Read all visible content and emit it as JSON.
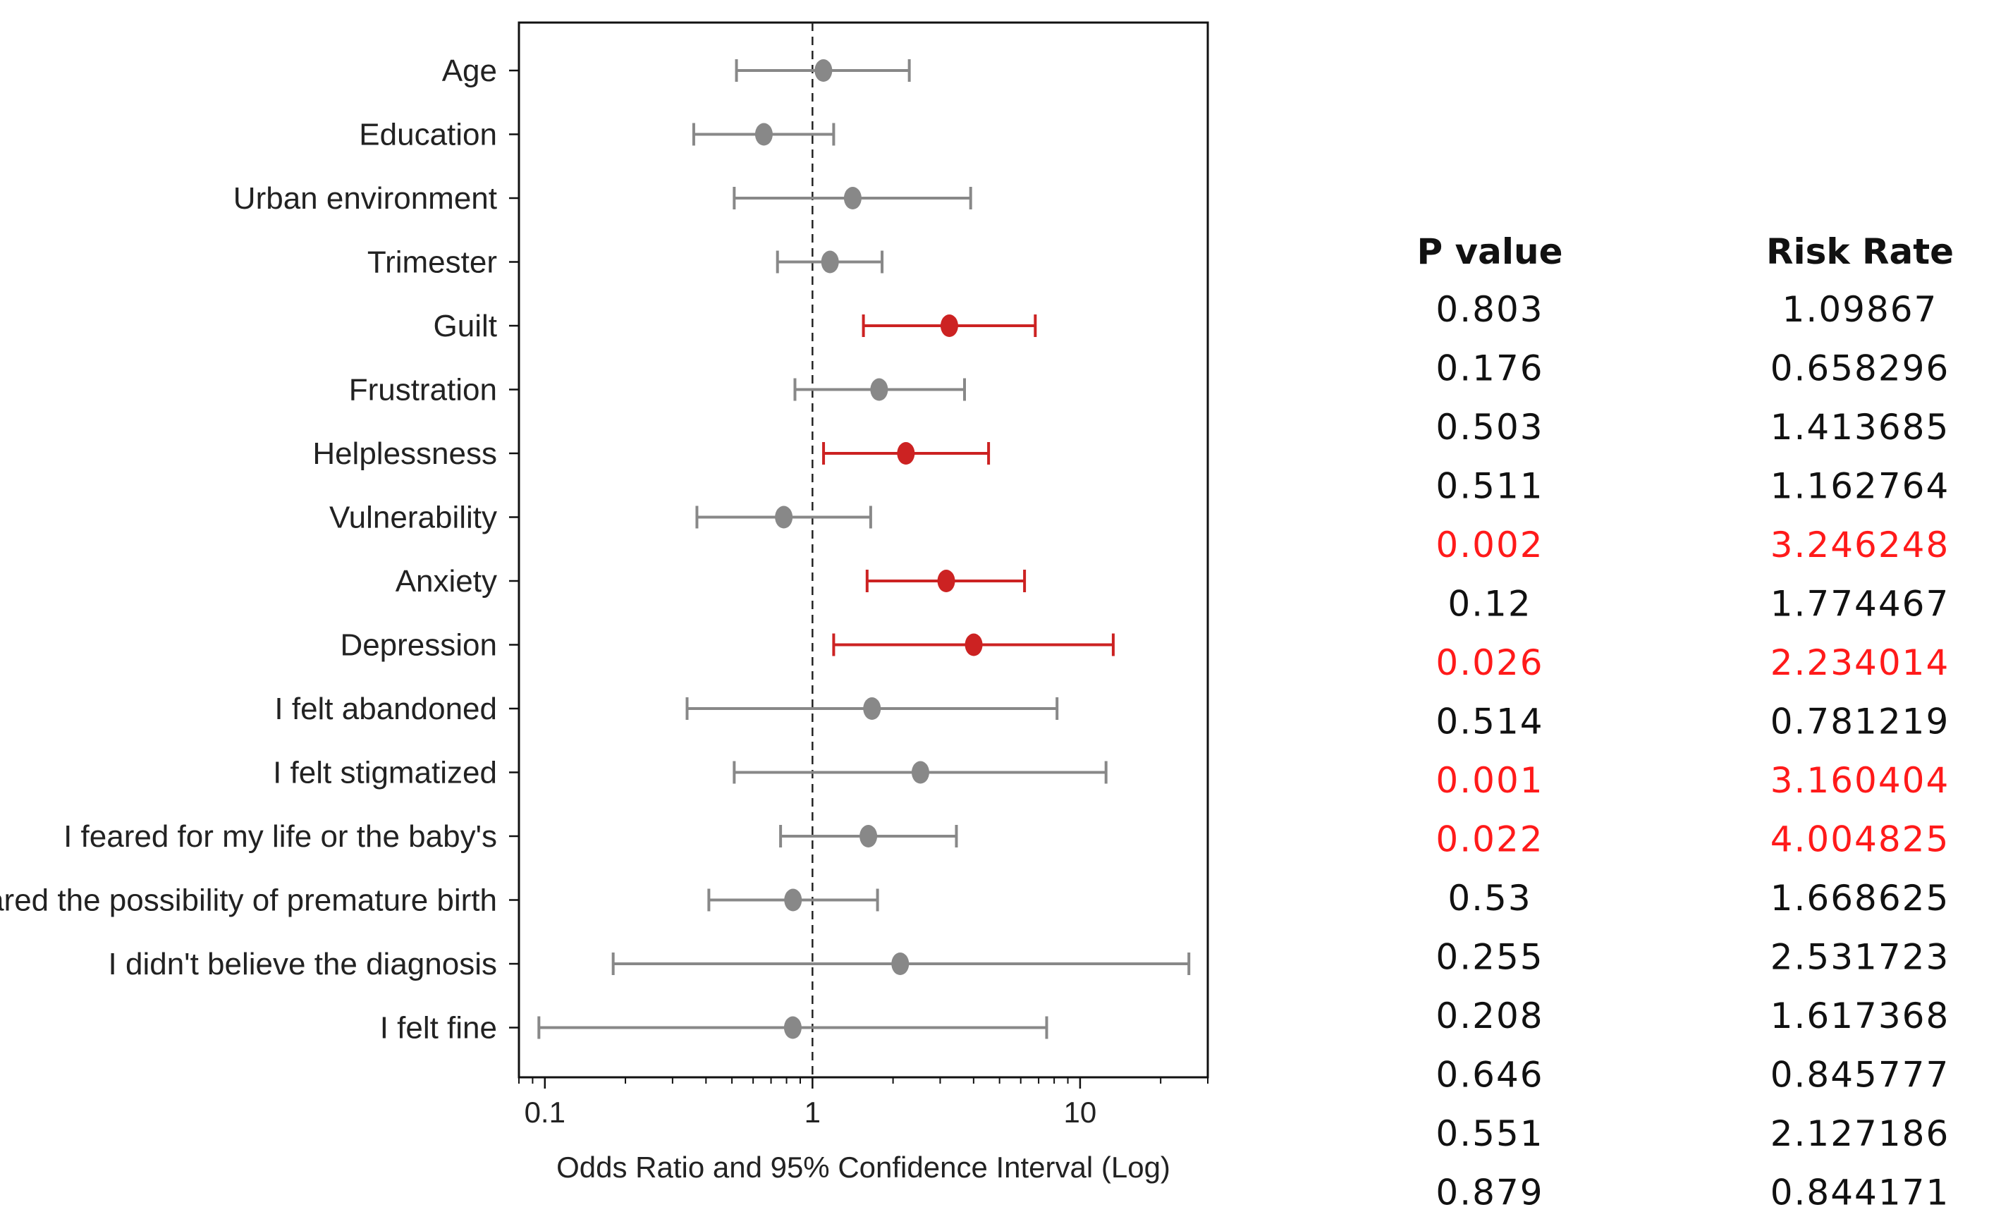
{
  "chart_data": {
    "type": "forest",
    "xscale": "log",
    "xlim": [
      0.08,
      30
    ],
    "xlabel": "Odds Ratio and 95% Confidence Interval (Log)",
    "xticks": [
      {
        "value": 0.1,
        "label": "0.1"
      },
      {
        "value": 1,
        "label": "1"
      },
      {
        "value": 10,
        "label": "10"
      }
    ],
    "reference_line": 1,
    "colors": {
      "significant": "#cc2222",
      "nonsignificant": "#888888"
    },
    "rows": [
      {
        "label": "Age",
        "estimate": 1.09867,
        "lower": 0.52,
        "upper": 2.3,
        "significant": false
      },
      {
        "label": "Education",
        "estimate": 0.658296,
        "lower": 0.36,
        "upper": 1.2,
        "significant": false
      },
      {
        "label": "Urban environment",
        "estimate": 1.413685,
        "lower": 0.51,
        "upper": 3.9,
        "significant": false
      },
      {
        "label": "Trimester",
        "estimate": 1.162764,
        "lower": 0.74,
        "upper": 1.82,
        "significant": false
      },
      {
        "label": "Guilt",
        "estimate": 3.246248,
        "lower": 1.55,
        "upper": 6.8,
        "significant": true
      },
      {
        "label": "Frustration",
        "estimate": 1.774467,
        "lower": 0.86,
        "upper": 3.7,
        "significant": false
      },
      {
        "label": "Helplessness",
        "estimate": 2.234014,
        "lower": 1.1,
        "upper": 4.55,
        "significant": true
      },
      {
        "label": "Vulnerability",
        "estimate": 0.781219,
        "lower": 0.37,
        "upper": 1.65,
        "significant": false
      },
      {
        "label": "Anxiety",
        "estimate": 3.160404,
        "lower": 1.6,
        "upper": 6.2,
        "significant": true
      },
      {
        "label": "Depression",
        "estimate": 4.004825,
        "lower": 1.2,
        "upper": 13.3,
        "significant": true
      },
      {
        "label": "I felt abandoned",
        "estimate": 1.668625,
        "lower": 0.34,
        "upper": 8.2,
        "significant": false
      },
      {
        "label": "I felt stigmatized",
        "estimate": 2.531723,
        "lower": 0.51,
        "upper": 12.5,
        "significant": false
      },
      {
        "label": "I feared for my life or the baby's",
        "estimate": 1.617368,
        "lower": 0.76,
        "upper": 3.45,
        "significant": false
      },
      {
        "label": "I feared the possibility of premature birth",
        "estimate": 0.845777,
        "lower": 0.41,
        "upper": 1.75,
        "significant": false
      },
      {
        "label": "I didn't believe the diagnosis",
        "estimate": 2.127186,
        "lower": 0.18,
        "upper": 25.5,
        "significant": false
      },
      {
        "label": "I felt fine",
        "estimate": 0.844171,
        "lower": 0.095,
        "upper": 7.5,
        "significant": false
      }
    ]
  },
  "table": {
    "headers": {
      "p_value": "P value",
      "risk_rate": "Risk Rate"
    },
    "rows": [
      {
        "p_value": "0.803",
        "risk_rate": "1.09867",
        "highlight": false
      },
      {
        "p_value": "0.176",
        "risk_rate": "0.658296",
        "highlight": false
      },
      {
        "p_value": "0.503",
        "risk_rate": "1.413685",
        "highlight": false
      },
      {
        "p_value": "0.511",
        "risk_rate": "1.162764",
        "highlight": false
      },
      {
        "p_value": "0.002",
        "risk_rate": "3.246248",
        "highlight": true
      },
      {
        "p_value": "0.12",
        "risk_rate": "1.774467",
        "highlight": false
      },
      {
        "p_value": "0.026",
        "risk_rate": "2.234014",
        "highlight": true
      },
      {
        "p_value": "0.514",
        "risk_rate": "0.781219",
        "highlight": false
      },
      {
        "p_value": "0.001",
        "risk_rate": "3.160404",
        "highlight": true
      },
      {
        "p_value": "0.022",
        "risk_rate": "4.004825",
        "highlight": true
      },
      {
        "p_value": "0.53",
        "risk_rate": "1.668625",
        "highlight": false
      },
      {
        "p_value": "0.255",
        "risk_rate": "2.531723",
        "highlight": false
      },
      {
        "p_value": "0.208",
        "risk_rate": "1.617368",
        "highlight": false
      },
      {
        "p_value": "0.646",
        "risk_rate": "0.845777",
        "highlight": false
      },
      {
        "p_value": "0.551",
        "risk_rate": "2.127186",
        "highlight": false
      },
      {
        "p_value": "0.879",
        "risk_rate": "0.844171",
        "highlight": false
      }
    ],
    "colors": {
      "normal": "#111111",
      "highlight": "#ff1a1a"
    }
  }
}
